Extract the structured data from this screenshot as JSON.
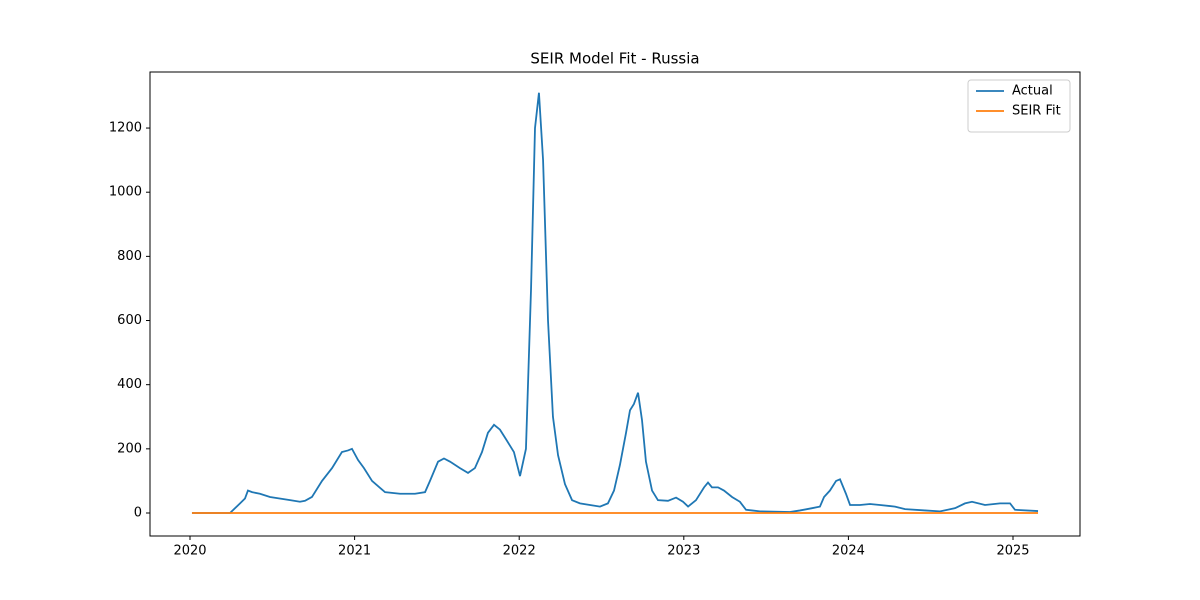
{
  "chart_data": {
    "type": "line",
    "title": "SEIR Model Fit - Russia",
    "xlim": [
      2019.757,
      2025.407
    ],
    "xticks": [
      2020,
      2021,
      2022,
      2023,
      2024,
      2025
    ],
    "ylim": [
      -71.7,
      1374.7
    ],
    "yticks": [
      0,
      200,
      400,
      600,
      800,
      1000,
      1200
    ],
    "grid": false,
    "legend": "upper right",
    "series": [
      {
        "name": "Actual",
        "color": "#1f77b4",
        "x": [
          2020.012,
          2020.243,
          2020.304,
          2020.334,
          2020.352,
          2020.377,
          2020.425,
          2020.486,
          2020.608,
          2020.668,
          2020.699,
          2020.741,
          2020.802,
          2020.863,
          2020.923,
          2020.96,
          2020.984,
          2021.021,
          2021.057,
          2021.106,
          2021.185,
          2021.276,
          2021.367,
          2021.428,
          2021.458,
          2021.507,
          2021.543,
          2021.58,
          2021.64,
          2021.689,
          2021.731,
          2021.774,
          2021.81,
          2021.847,
          2021.883,
          2021.92,
          2021.968,
          2022.005,
          2022.041,
          2022.072,
          2022.096,
          2022.12,
          2022.145,
          2022.175,
          2022.205,
          2022.236,
          2022.278,
          2022.321,
          2022.369,
          2022.43,
          2022.491,
          2022.539,
          2022.576,
          2022.612,
          2022.649,
          2022.673,
          2022.697,
          2022.722,
          2022.746,
          2022.77,
          2022.807,
          2022.843,
          2022.904,
          2022.953,
          2022.995,
          2023.026,
          2023.074,
          2023.123,
          2023.147,
          2023.171,
          2023.208,
          2023.244,
          2023.293,
          2023.341,
          2023.378,
          2023.414,
          2023.463,
          2023.645,
          2023.706,
          2023.779,
          2023.827,
          2023.852,
          2023.888,
          2023.925,
          2023.949,
          2023.985,
          2024.01,
          2024.07,
          2024.131,
          2024.192,
          2024.283,
          2024.344,
          2024.465,
          2024.557,
          2024.648,
          2024.708,
          2024.751,
          2024.83,
          2024.921,
          2024.982,
          2025.012,
          2025.152
        ],
        "values": [
          0,
          0,
          30,
          45,
          70,
          65,
          60,
          50,
          40,
          35,
          38,
          50,
          100,
          140,
          190,
          195,
          200,
          165,
          140,
          100,
          65,
          60,
          60,
          65,
          100,
          160,
          170,
          160,
          140,
          125,
          140,
          190,
          250,
          275,
          260,
          230,
          190,
          115,
          200,
          700,
          1200,
          1310,
          1100,
          600,
          300,
          180,
          90,
          40,
          30,
          25,
          20,
          30,
          70,
          150,
          250,
          320,
          340,
          375,
          290,
          160,
          70,
          40,
          38,
          48,
          35,
          20,
          40,
          80,
          95,
          80,
          80,
          70,
          50,
          35,
          10,
          8,
          5,
          3,
          8,
          15,
          20,
          50,
          70,
          100,
          105,
          60,
          25,
          25,
          28,
          25,
          20,
          12,
          8,
          5,
          15,
          30,
          35,
          25,
          30,
          30,
          10,
          6
        ]
      },
      {
        "name": "SEIR Fit",
        "color": "#ff7f0e",
        "x": [
          2020.012,
          2025.152
        ],
        "values": [
          0,
          0
        ]
      }
    ]
  }
}
